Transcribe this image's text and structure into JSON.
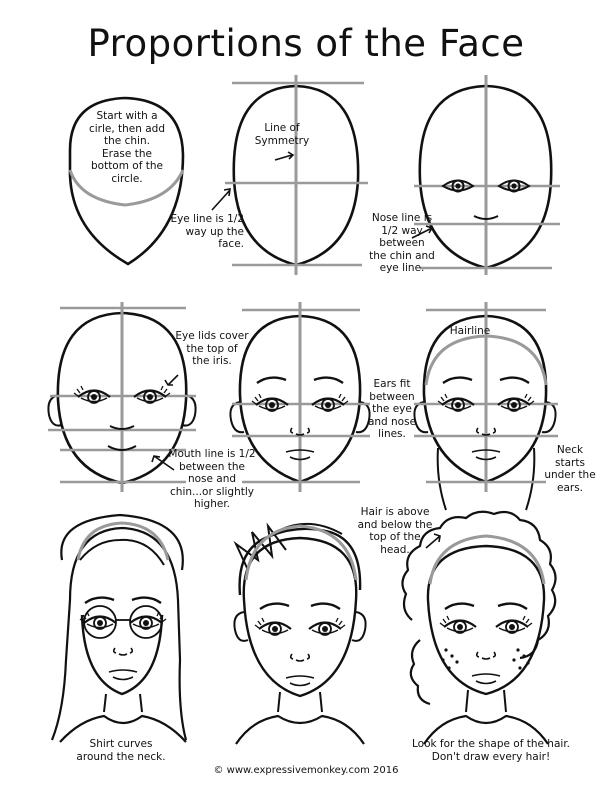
{
  "title": "Proportions of the Face",
  "labels": {
    "start_circle": "Start with a\ncirle, then add\nthe chin.\nErase the\nbottom of the\ncircle.",
    "line_of_symmetry": "Line of\nSymmetry",
    "eye_line": "Eye line is 1/2\nway up the\nface.",
    "nose_line": "Nose line is\n1/2 way\nbetween\nthe chin and\neye line.",
    "eye_lids": "Eye lids cover\nthe top of\nthe iris.",
    "mouth_line": "Mouth line is 1/2\nbetween the\nnose and\nchin...or slightly\nhigher.",
    "ears": "Ears fit\nbetween\nthe eye\nand nose\nlines.",
    "hairline": "Hairline",
    "neck": "Neck\nstarts\nunder the\nears.",
    "hair_above": "Hair is above\nand below the\ntop of the\nhead.",
    "shirt": "Shirt curves\naround the neck.",
    "look_for": "Look for the shape of the hair.\nDon't draw every hair!"
  },
  "footer": "© www.expressivemonkey.com 2016",
  "colors": {
    "ink": "#111111",
    "guide": "#9a9a9a"
  }
}
